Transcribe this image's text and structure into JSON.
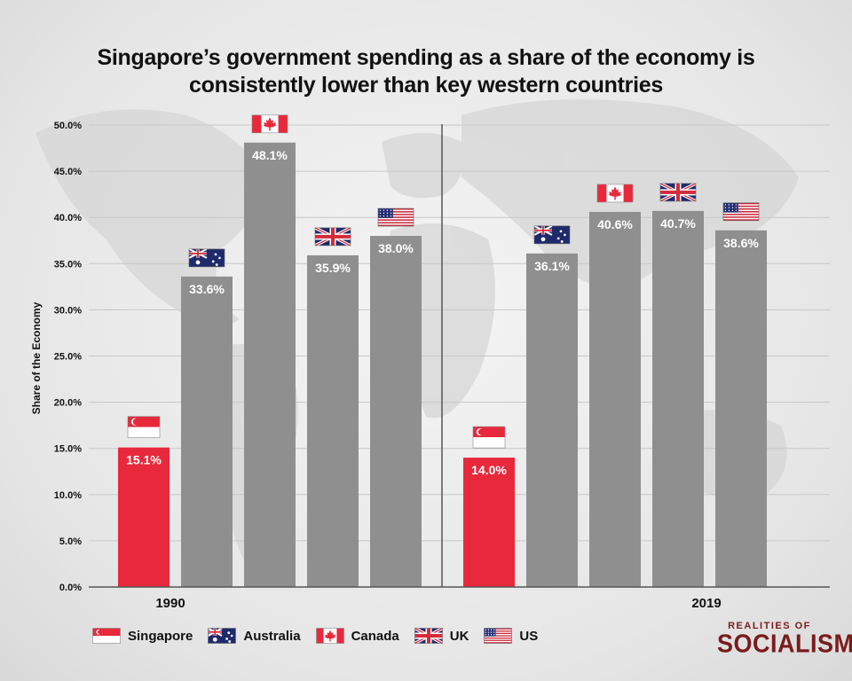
{
  "title": {
    "line1": "Singapore’s government spending as a share of the economy is",
    "line2": "consistently lower than key western countries"
  },
  "brand": {
    "top": "REALITIES OF",
    "main": "SOCIALISM"
  },
  "colors": {
    "singapore_bar": "#e8293b",
    "other_bar": "#8f8f8f",
    "axis": "#555555",
    "grid": "#c8c8c8",
    "brand": "#7a1b1b"
  },
  "legend": [
    {
      "flag": "singapore-flag-icon",
      "label": "Singapore"
    },
    {
      "flag": "australia-flag-icon",
      "label": "Australia"
    },
    {
      "flag": "canada-flag-icon",
      "label": "Canada"
    },
    {
      "flag": "uk-flag-icon",
      "label": "UK"
    },
    {
      "flag": "us-flag-icon",
      "label": "US"
    }
  ],
  "chart_data": {
    "type": "bar",
    "title": "Singapore’s government spending as a share of the economy is consistently lower than key western countries",
    "xlabel": "",
    "ylabel": "Share of the Economy",
    "ylim": [
      0,
      50
    ],
    "yticks": [
      "0.0%",
      "5.0%",
      "10.0%",
      "15.0%",
      "20.0%",
      "25.0%",
      "30.0%",
      "35.0%",
      "40.0%",
      "45.0%",
      "50.0%"
    ],
    "grid": true,
    "legend_position": "bottom-left",
    "categories": [
      "1990",
      "2019"
    ],
    "series": [
      {
        "name": "Singapore",
        "flag": "singapore-flag-icon",
        "values": [
          15.1,
          14.0
        ],
        "labels": [
          "15.1%",
          "14.0%"
        ]
      },
      {
        "name": "Australia",
        "flag": "australia-flag-icon",
        "values": [
          33.6,
          36.1
        ],
        "labels": [
          "33.6%",
          "36.1%"
        ]
      },
      {
        "name": "Canada",
        "flag": "canada-flag-icon",
        "values": [
          48.1,
          40.6
        ],
        "labels": [
          "48.1%",
          "40.6%"
        ]
      },
      {
        "name": "UK",
        "flag": "uk-flag-icon",
        "values": [
          35.9,
          40.7
        ],
        "labels": [
          "35.9%",
          "40.7%"
        ]
      },
      {
        "name": "US",
        "flag": "us-flag-icon",
        "values": [
          38.0,
          38.6
        ],
        "labels": [
          "38.0%",
          "38.6%"
        ]
      }
    ]
  }
}
